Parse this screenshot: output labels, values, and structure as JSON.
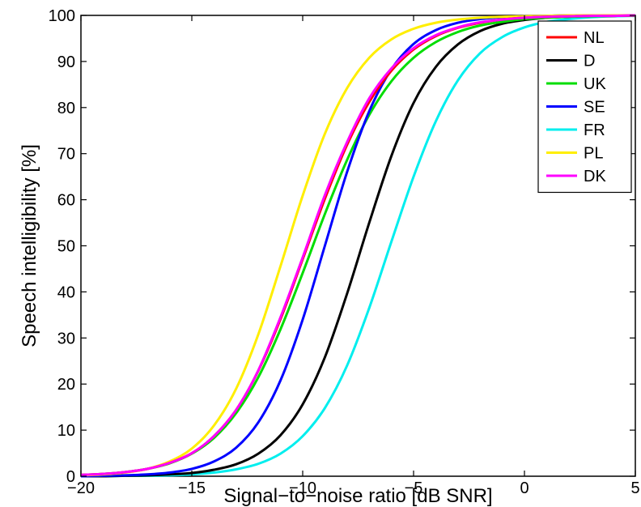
{
  "chart_data": {
    "type": "line",
    "xlabel": "Signal−to−noise ratio [dB SNR]",
    "ylabel": "Speech intelligibility [%]",
    "xlim": [
      -20,
      5
    ],
    "ylim": [
      0,
      100
    ],
    "x_ticks": [
      -20,
      -15,
      -10,
      -5,
      0,
      5
    ],
    "x_tick_labels": [
      "−20",
      "−15",
      "−10",
      "−5",
      "0",
      "5"
    ],
    "y_ticks": [
      0,
      10,
      20,
      30,
      40,
      50,
      60,
      70,
      80,
      90,
      100
    ],
    "y_tick_labels": [
      "0",
      "10",
      "20",
      "30",
      "40",
      "50",
      "60",
      "70",
      "80",
      "90",
      "100"
    ],
    "grid": false,
    "legend_position": "top-right",
    "x": [
      -20,
      -19,
      -18,
      -17,
      -16,
      -15,
      -14,
      -13,
      -12,
      -11,
      -10,
      -9,
      -8,
      -7,
      -6,
      -5,
      -4,
      -3,
      -2,
      -1,
      0,
      1,
      2,
      3,
      4,
      5
    ],
    "series": [
      {
        "name": "NL",
        "color": "#ff0000",
        "values": [
          0.3,
          0.5,
          0.9,
          1.6,
          2.9,
          5.0,
          8.7,
          14.4,
          22.9,
          34.1,
          47.1,
          60.2,
          71.9,
          81.2,
          88.0,
          92.6,
          95.5,
          97.3,
          98.4,
          99.1,
          99.5,
          99.7,
          99.8,
          99.9,
          99.9,
          100.0
        ]
      },
      {
        "name": "D",
        "color": "#000000",
        "values": [
          0.0,
          0.0,
          0.1,
          0.2,
          0.4,
          0.7,
          1.4,
          2.6,
          4.9,
          8.9,
          15.6,
          25.8,
          39.6,
          55.0,
          69.5,
          81.0,
          88.8,
          93.7,
          96.6,
          98.2,
          99.0,
          99.5,
          99.7,
          99.9,
          99.9,
          100.0
        ]
      },
      {
        "name": "UK",
        "color": "#00dd00",
        "values": [
          0.3,
          0.5,
          0.9,
          1.6,
          2.8,
          4.9,
          8.3,
          13.7,
          21.5,
          31.9,
          44.1,
          56.9,
          68.6,
          78.4,
          85.7,
          90.8,
          94.2,
          96.4,
          97.8,
          98.6,
          99.2,
          99.5,
          99.7,
          99.8,
          99.9,
          99.9
        ]
      },
      {
        "name": "SE",
        "color": "#0000ff",
        "values": [
          0.0,
          0.1,
          0.2,
          0.4,
          0.8,
          1.6,
          3.2,
          6.2,
          11.7,
          20.8,
          34.0,
          50.0,
          66.0,
          79.2,
          88.3,
          93.8,
          96.8,
          98.4,
          99.2,
          99.6,
          99.8,
          99.9,
          100.0,
          100.0,
          100.0,
          100.0
        ]
      },
      {
        "name": "FR",
        "color": "#00eeee",
        "values": [
          0.0,
          0.0,
          0.1,
          0.1,
          0.2,
          0.4,
          0.8,
          1.5,
          2.7,
          4.9,
          8.7,
          14.8,
          24.0,
          36.5,
          50.9,
          65.0,
          77.0,
          85.9,
          91.8,
          95.3,
          97.4,
          98.6,
          99.2,
          99.6,
          99.8,
          99.9
        ]
      },
      {
        "name": "PL",
        "color": "#ffee00",
        "values": [
          0.2,
          0.4,
          0.8,
          1.6,
          3.2,
          6.0,
          11.0,
          19.0,
          30.8,
          45.6,
          60.9,
          74.3,
          84.2,
          90.8,
          94.8,
          97.1,
          98.4,
          99.1,
          99.5,
          99.7,
          99.8,
          99.9,
          100.0,
          100.0,
          100.0,
          100.0
        ]
      },
      {
        "name": "DK",
        "color": "#ff00ff",
        "values": [
          0.3,
          0.5,
          0.9,
          1.6,
          2.9,
          5.0,
          8.7,
          14.4,
          23.0,
          34.5,
          47.5,
          61.0,
          72.5,
          82.0,
          88.5,
          92.9,
          95.7,
          97.4,
          98.5,
          99.1,
          99.5,
          99.7,
          99.8,
          99.9,
          99.9,
          100.0
        ]
      }
    ]
  }
}
